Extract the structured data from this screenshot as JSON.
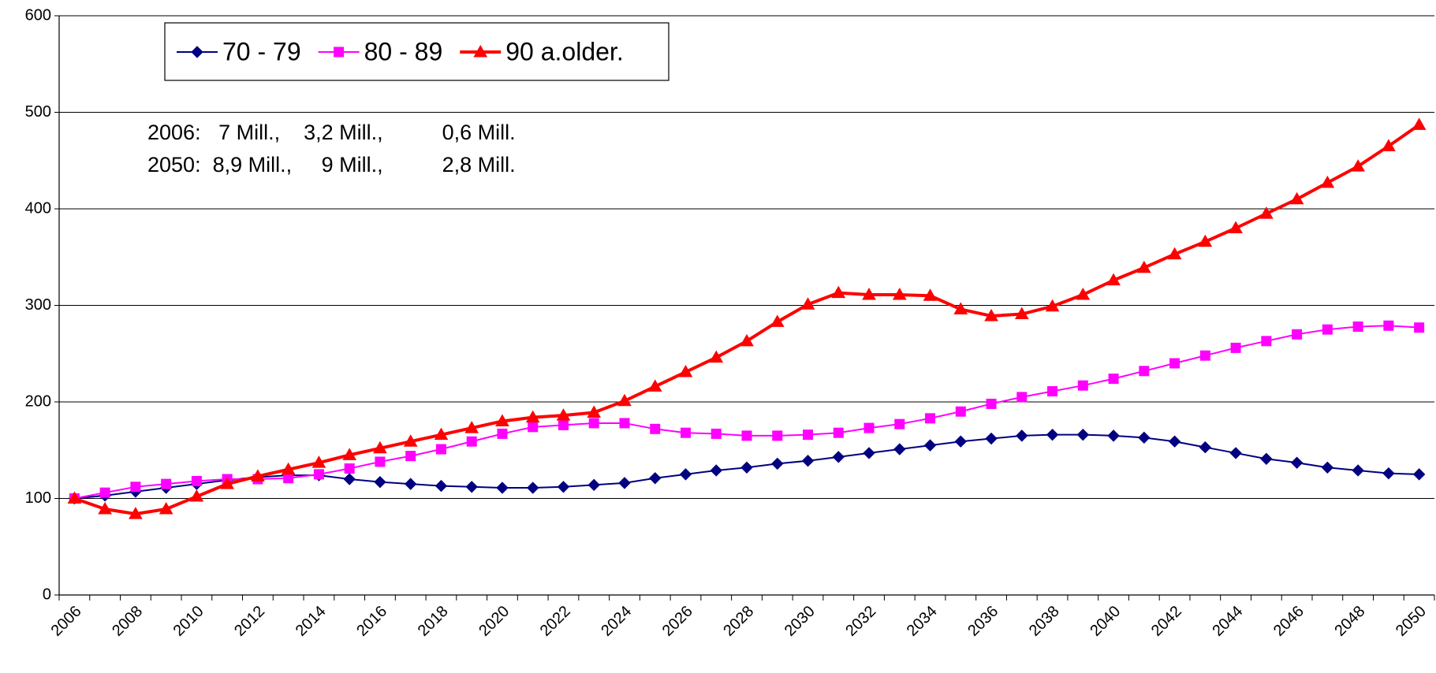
{
  "chart_data": {
    "type": "line",
    "categories": [
      "2006",
      null,
      "2008",
      null,
      "2010",
      null,
      "2012",
      null,
      "2014",
      null,
      "2016",
      null,
      "2018",
      null,
      "2020",
      null,
      "2022",
      null,
      "2024",
      null,
      "2026",
      null,
      "2028",
      null,
      "2030",
      null,
      "2032",
      null,
      "2034",
      null,
      "2036",
      null,
      "2038",
      null,
      "2040",
      null,
      "2042",
      null,
      "2044",
      null,
      "2046",
      null,
      "2048",
      null,
      "2050"
    ],
    "series": [
      {
        "name": "70 - 79",
        "color": "#000080",
        "marker": "diamond",
        "values": [
          100,
          103,
          107,
          111,
          115,
          119,
          122,
          124,
          124,
          120,
          117,
          115,
          113,
          112,
          111,
          111,
          112,
          114,
          116,
          121,
          125,
          129,
          132,
          136,
          139,
          143,
          147,
          151,
          155,
          159,
          162,
          165,
          166,
          166,
          165,
          163,
          159,
          153,
          147,
          141,
          137,
          132,
          129,
          126,
          125
        ]
      },
      {
        "name": "80 - 89",
        "color": "#ff00ff",
        "marker": "square",
        "values": [
          100,
          106,
          112,
          115,
          118,
          120,
          120,
          121,
          125,
          131,
          138,
          144,
          151,
          159,
          167,
          174,
          176,
          178,
          178,
          172,
          168,
          167,
          165,
          165,
          166,
          168,
          173,
          177,
          183,
          190,
          198,
          205,
          211,
          217,
          224,
          232,
          240,
          248,
          256,
          263,
          270,
          275,
          278,
          279,
          277
        ]
      },
      {
        "name": "90 a.older.",
        "color": "#ff0000",
        "marker": "triangle",
        "values": [
          100,
          89,
          84,
          89,
          102,
          115,
          123,
          130,
          137,
          145,
          152,
          159,
          166,
          173,
          180,
          184,
          186,
          189,
          201,
          216,
          231,
          246,
          263,
          283,
          301,
          313,
          311,
          311,
          310,
          296,
          289,
          291,
          299,
          311,
          326,
          339,
          353,
          366,
          380,
          395,
          410,
          427,
          444,
          465,
          487
        ]
      }
    ],
    "annotations": [
      "2006:   7 Mill.,    3,2 Mill.,          0,6 Mill.",
      "2050:  8,9 Mill.,     9 Mill.,          2,8 Mill."
    ],
    "ylim": [
      0,
      600
    ],
    "yticks": [
      0,
      100,
      200,
      300,
      400,
      500,
      600
    ],
    "grid": true,
    "legend": "top-left"
  }
}
